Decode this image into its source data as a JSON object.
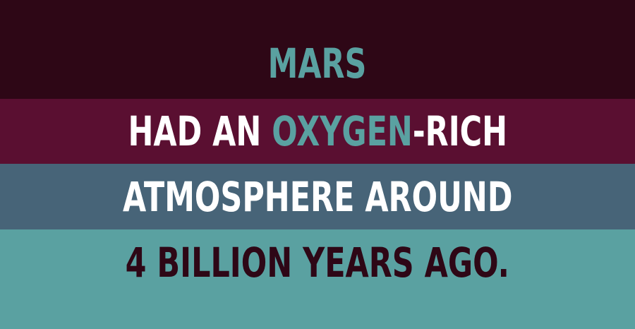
{
  "lines": {
    "line1": {
      "word": "MARS"
    },
    "line2": {
      "part1": "HAD AN ",
      "highlight": "OXYGEN",
      "part2": "-RICH"
    },
    "line3": {
      "text": "ATMOSPHERE AROUND"
    },
    "line4": {
      "text": "4 BILLION YEARS AGO."
    }
  },
  "colors": {
    "band_top": "#2e0716",
    "band_second": "#5a0f31",
    "band_third": "#476478",
    "band_bottom": "#5aa1a1",
    "accent_teal": "#5aa1a1",
    "text_white": "#ffffff",
    "text_maroon": "#2e0716"
  }
}
